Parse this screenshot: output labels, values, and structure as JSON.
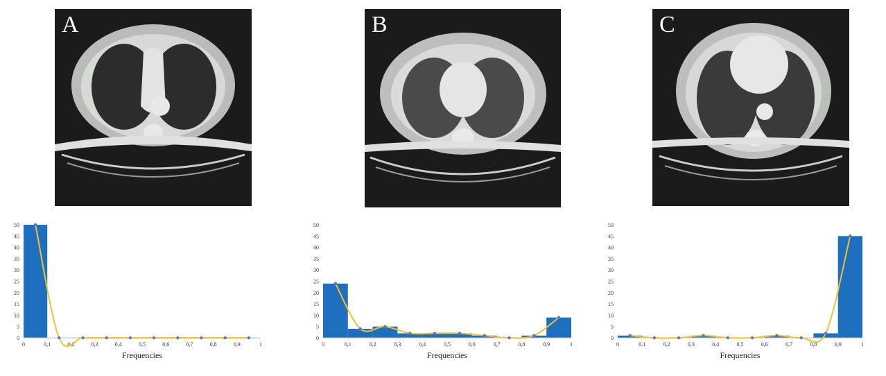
{
  "colors": {
    "bar": "#1f6fbf",
    "line": "#f2c12e",
    "marker": "#4a7fc8",
    "ct_bg": "#1b1b1b"
  },
  "panels": [
    {
      "letter": "A",
      "image": "ct-scan-axial-chest-a"
    },
    {
      "letter": "B",
      "image": "ct-scan-axial-chest-b"
    },
    {
      "letter": "C",
      "image": "ct-scan-axial-chest-c"
    }
  ],
  "chart_data": [
    {
      "type": "bar",
      "xlabel": "Frequencies",
      "ylabel": "",
      "xlim": [
        0,
        1
      ],
      "ylim": [
        0,
        50
      ],
      "xticks": [
        "0",
        "0,1",
        "0,2",
        "0,3",
        "0,4",
        "0,5",
        "0,6",
        "0,7",
        "0,8",
        "0,9",
        "1"
      ],
      "yticks": [
        "0",
        "5",
        "10",
        "15",
        "20",
        "25",
        "30",
        "35",
        "40",
        "45",
        "50"
      ],
      "bins": [
        [
          0,
          0.1
        ],
        [
          0.1,
          0.2
        ],
        [
          0.2,
          0.3
        ],
        [
          0.3,
          0.4
        ],
        [
          0.4,
          0.5
        ],
        [
          0.5,
          0.6
        ],
        [
          0.6,
          0.7
        ],
        [
          0.7,
          0.8
        ],
        [
          0.8,
          0.9
        ],
        [
          0.9,
          1.0
        ]
      ],
      "values": [
        50,
        0,
        0,
        0,
        0,
        0,
        0,
        0,
        0,
        0
      ],
      "line_points": {
        "x": [
          0.05,
          0.15,
          0.25,
          0.35,
          0.45,
          0.55,
          0.65,
          0.75,
          0.85,
          0.95
        ],
        "y": [
          50,
          0,
          0,
          0,
          0,
          0,
          0,
          0,
          0,
          0
        ]
      }
    },
    {
      "type": "bar",
      "xlabel": "Frequencies",
      "ylabel": "",
      "xlim": [
        0,
        1
      ],
      "ylim": [
        0,
        50
      ],
      "xticks": [
        "0",
        "0,1",
        "0,2",
        "0,3",
        "0,4",
        "0,5",
        "0,6",
        "0,7",
        "0,8",
        "0,9",
        "1"
      ],
      "yticks": [
        "0",
        "5",
        "10",
        "15",
        "20",
        "25",
        "30",
        "35",
        "40",
        "45",
        "50"
      ],
      "bins": [
        [
          0,
          0.1
        ],
        [
          0.1,
          0.2
        ],
        [
          0.2,
          0.3
        ],
        [
          0.3,
          0.4
        ],
        [
          0.4,
          0.5
        ],
        [
          0.5,
          0.6
        ],
        [
          0.6,
          0.7
        ],
        [
          0.7,
          0.8
        ],
        [
          0.8,
          0.9
        ],
        [
          0.9,
          1.0
        ]
      ],
      "values": [
        24,
        4,
        5,
        2,
        2,
        2,
        1,
        0,
        1,
        9
      ],
      "line_points": {
        "x": [
          0.05,
          0.15,
          0.25,
          0.35,
          0.45,
          0.55,
          0.65,
          0.75,
          0.85,
          0.95
        ],
        "y": [
          24,
          4,
          5,
          2,
          2,
          2,
          1,
          0,
          1,
          9
        ]
      }
    },
    {
      "type": "bar",
      "xlabel": "Frequencies",
      "ylabel": "",
      "xlim": [
        0,
        1
      ],
      "ylim": [
        0,
        50
      ],
      "xticks": [
        "0",
        "0,1",
        "0,2",
        "0,3",
        "0,4",
        "0,5",
        "0,6",
        "0,7",
        "0,8",
        "0,9",
        "1"
      ],
      "yticks": [
        "0",
        "5",
        "10",
        "15",
        "20",
        "25",
        "30",
        "35",
        "40",
        "45",
        "50"
      ],
      "bins": [
        [
          0,
          0.1
        ],
        [
          0.1,
          0.2
        ],
        [
          0.2,
          0.3
        ],
        [
          0.3,
          0.4
        ],
        [
          0.4,
          0.5
        ],
        [
          0.5,
          0.6
        ],
        [
          0.6,
          0.7
        ],
        [
          0.7,
          0.8
        ],
        [
          0.8,
          0.9
        ],
        [
          0.9,
          1.0
        ]
      ],
      "values": [
        1,
        0,
        0,
        1,
        0,
        0,
        1,
        0,
        2,
        45
      ],
      "line_points": {
        "x": [
          0.05,
          0.15,
          0.25,
          0.35,
          0.45,
          0.55,
          0.65,
          0.75,
          0.85,
          0.95
        ],
        "y": [
          1,
          0,
          0,
          1,
          0,
          0,
          1,
          0,
          2,
          45
        ]
      }
    }
  ]
}
